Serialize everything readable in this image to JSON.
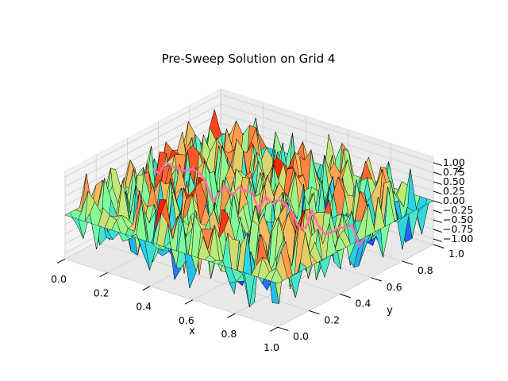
{
  "chart_data": {
    "type": "surface3d",
    "title": "Pre-Sweep Solution on Grid 4",
    "xlabel": "x",
    "ylabel": "y",
    "zlabel": "z",
    "xlim": [
      0,
      1
    ],
    "ylim": [
      0,
      1
    ],
    "zlim": [
      -1,
      1
    ],
    "x_ticks": [
      "0.0",
      "0.2",
      "0.4",
      "0.6",
      "0.8",
      "1.0"
    ],
    "y_ticks": [
      "0.0",
      "0.2",
      "0.4",
      "0.6",
      "0.8",
      "1.0"
    ],
    "z_ticks": [
      "−1.00",
      "−0.75",
      "−0.50",
      "−0.25",
      "0.00",
      "0.25",
      "0.50",
      "0.75",
      "1.00"
    ],
    "colormap": "rainbow",
    "grid": true,
    "surface_edge_color": "#000000",
    "trace_color": "#ff6fa8",
    "note_values": "Surface is a noisy (random-like) field on a 33x33 grid; z values range roughly from -1 to 1; boundary rows fixed near 0."
  }
}
